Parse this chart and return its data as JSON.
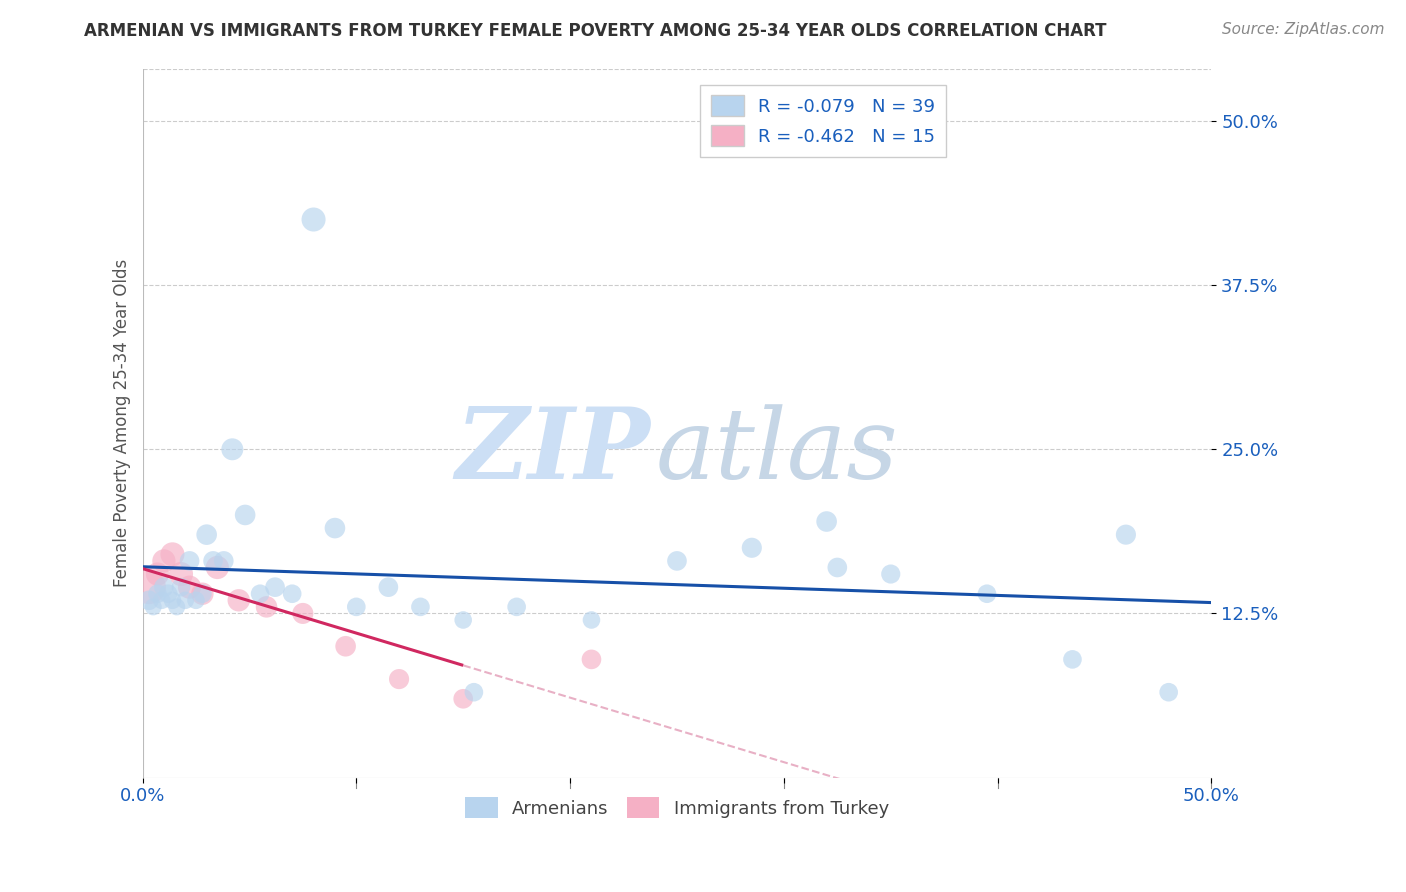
{
  "title": "ARMENIAN VS IMMIGRANTS FROM TURKEY FEMALE POVERTY AMONG 25-34 YEAR OLDS CORRELATION CHART",
  "source": "Source: ZipAtlas.com",
  "ylabel": "Female Poverty Among 25-34 Year Olds",
  "xlim": [
    0.0,
    0.5
  ],
  "ylim": [
    0.0,
    0.54
  ],
  "ytick_positions": [
    0.125,
    0.25,
    0.375,
    0.5
  ],
  "ytick_labels": [
    "12.5%",
    "25.0%",
    "37.5%",
    "50.0%"
  ],
  "xtick_positions": [
    0.0,
    0.1,
    0.2,
    0.3,
    0.4,
    0.5
  ],
  "xticklabels": [
    "0.0%",
    "",
    "",
    "",
    "",
    "50.0%"
  ],
  "legend_top": [
    {
      "label": "R = -0.079   N = 39",
      "color": "#b8d4ee"
    },
    {
      "label": "R = -0.462   N = 15",
      "color": "#f5b0c5"
    }
  ],
  "legend_bottom": [
    {
      "label": "Armenians",
      "color": "#b8d4ee"
    },
    {
      "label": "Immigrants from Turkey",
      "color": "#f5b0c5"
    }
  ],
  "armenians_x": [
    0.003,
    0.005,
    0.007,
    0.009,
    0.01,
    0.012,
    0.014,
    0.016,
    0.018,
    0.02,
    0.022,
    0.025,
    0.028,
    0.03,
    0.033,
    0.038,
    0.042,
    0.048,
    0.055,
    0.062,
    0.07,
    0.08,
    0.09,
    0.1,
    0.115,
    0.13,
    0.15,
    0.175,
    0.21,
    0.25,
    0.285,
    0.32,
    0.35,
    0.395,
    0.435,
    0.46,
    0.48,
    0.325,
    0.155
  ],
  "armenians_y": [
    0.135,
    0.13,
    0.14,
    0.135,
    0.145,
    0.14,
    0.135,
    0.13,
    0.145,
    0.135,
    0.165,
    0.135,
    0.14,
    0.185,
    0.165,
    0.165,
    0.25,
    0.2,
    0.14,
    0.145,
    0.14,
    0.425,
    0.19,
    0.13,
    0.145,
    0.13,
    0.12,
    0.13,
    0.12,
    0.165,
    0.175,
    0.195,
    0.155,
    0.14,
    0.09,
    0.185,
    0.065,
    0.16,
    0.065
  ],
  "armenians_size": [
    200,
    150,
    180,
    160,
    200,
    180,
    160,
    150,
    180,
    160,
    200,
    160,
    180,
    220,
    200,
    200,
    250,
    220,
    180,
    200,
    180,
    300,
    220,
    180,
    200,
    180,
    160,
    180,
    160,
    200,
    210,
    220,
    190,
    180,
    180,
    210,
    180,
    200,
    180
  ],
  "turkey_x": [
    0.003,
    0.007,
    0.01,
    0.014,
    0.018,
    0.022,
    0.028,
    0.035,
    0.045,
    0.058,
    0.075,
    0.095,
    0.12,
    0.15,
    0.21
  ],
  "turkey_y": [
    0.145,
    0.155,
    0.165,
    0.17,
    0.155,
    0.145,
    0.14,
    0.16,
    0.135,
    0.13,
    0.125,
    0.1,
    0.075,
    0.06,
    0.09
  ],
  "turkey_size": [
    600,
    280,
    280,
    300,
    300,
    280,
    260,
    280,
    260,
    240,
    230,
    220,
    210,
    200,
    200
  ],
  "blue_scatter_color": "#b8d4ee",
  "pink_scatter_color": "#f5b0c5",
  "trend_blue": "#1650a8",
  "trend_pink": "#d02860",
  "trend_pink_dash_color": "#e8b0c5",
  "background_color": "#ffffff",
  "grid_color": "#cccccc",
  "title_color": "#333333",
  "axis_label_color": "#555555",
  "tick_label_color": "#1a5fbd",
  "source_color": "#888888",
  "legend_text_color": "#1a5fbd",
  "watermark_zip_color": "#ccdff5",
  "watermark_atlas_color": "#b8cce0"
}
